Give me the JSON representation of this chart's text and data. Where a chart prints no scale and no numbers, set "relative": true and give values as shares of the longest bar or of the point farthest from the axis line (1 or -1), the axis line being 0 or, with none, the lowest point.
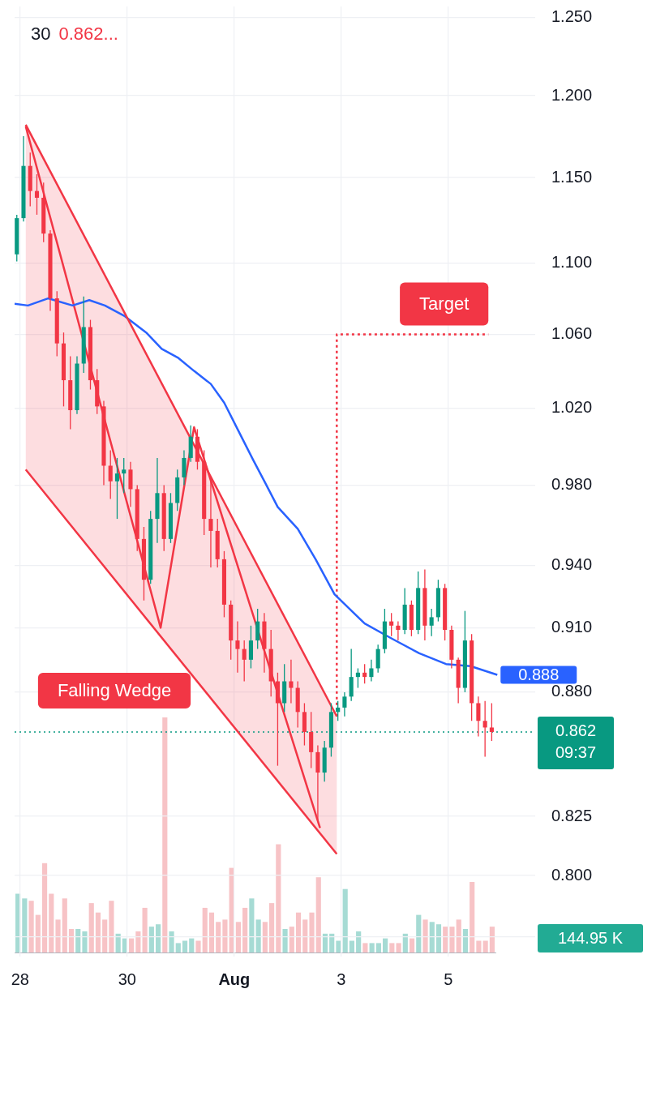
{
  "chart_data": [
    {
      "type": "candlestick",
      "title": "30",
      "x": [
        "--07-27T22:30",
        "--07-28T01:30",
        "--07-28T04:30",
        "--07-28T07:30",
        "--07-28T10:30",
        "--07-28T13:30",
        "--07-28T16:30",
        "--07-28T19:30",
        "--07-28T22:30",
        "--07-29T01:30",
        "--07-29T04:30",
        "--07-29T07:30",
        "--07-29T10:30",
        "--07-29T13:30",
        "--07-29T16:30",
        "--07-29T19:30",
        "--07-29T22:30",
        "--07-30T01:30",
        "--07-30T04:30",
        "--07-30T07:30",
        "--07-30T10:30",
        "--07-30T13:30",
        "--07-30T16:30",
        "--07-30T19:30",
        "--07-30T22:30",
        "--07-31T01:30",
        "--07-31T04:30",
        "--07-31T07:30",
        "--07-31T10:30",
        "--07-31T13:30",
        "--07-31T16:30",
        "--07-31T19:30",
        "--07-31T22:30",
        "--08-01T01:30",
        "--08-01T04:30",
        "--08-01T07:30",
        "--08-01T10:30",
        "--08-01T13:30",
        "--08-01T16:30",
        "--08-01T19:30",
        "--08-01T22:30",
        "--08-02T01:30",
        "--08-02T04:30",
        "--08-02T07:30",
        "--08-02T10:30",
        "--08-02T13:30",
        "--08-02T16:30",
        "--08-02T19:30",
        "--08-02T22:30",
        "--08-03T01:30",
        "--08-03T04:30",
        "--08-03T07:30",
        "--08-03T10:30",
        "--08-03T13:30",
        "--08-03T16:30",
        "--08-03T19:30",
        "--08-03T22:30",
        "--08-04T01:30",
        "--08-04T04:30",
        "--08-04T07:30",
        "--08-04T10:30",
        "--08-04T13:30",
        "--08-04T16:30",
        "--08-04T19:30",
        "--08-04T22:30",
        "--08-05T01:30",
        "--08-05T04:30",
        "--08-05T07:30",
        "--08-05T10:30",
        "--08-05T13:30",
        "--08-05T16:30",
        "--08-05T19:30"
      ],
      "ohlc": [
        [
          1.105,
          1.128,
          1.101,
          1.126
        ],
        [
          1.126,
          1.175,
          1.124,
          1.157
        ],
        [
          1.157,
          1.165,
          1.133,
          1.142
        ],
        [
          1.142,
          1.152,
          1.128,
          1.138
        ],
        [
          1.138,
          1.147,
          1.112,
          1.117
        ],
        [
          1.117,
          1.119,
          1.073,
          1.08
        ],
        [
          1.08,
          1.084,
          1.048,
          1.055
        ],
        [
          1.055,
          1.061,
          1.021,
          1.035
        ],
        [
          1.035,
          1.048,
          1.009,
          1.019
        ],
        [
          1.019,
          1.048,
          1.017,
          1.044
        ],
        [
          1.044,
          1.081,
          1.039,
          1.064
        ],
        [
          1.064,
          1.068,
          1.03,
          1.035
        ],
        [
          1.035,
          1.041,
          1.017,
          1.021
        ],
        [
          1.021,
          1.024,
          0.98,
          0.99
        ],
        [
          0.99,
          0.998,
          0.973,
          0.982
        ],
        [
          0.982,
          0.994,
          0.963,
          0.986
        ],
        [
          0.986,
          0.994,
          0.976,
          0.988
        ],
        [
          0.988,
          0.992,
          0.969,
          0.978
        ],
        [
          0.978,
          0.98,
          0.947,
          0.953
        ],
        [
          0.953,
          0.959,
          0.923,
          0.933
        ],
        [
          0.933,
          0.967,
          0.931,
          0.963
        ],
        [
          0.963,
          0.994,
          0.951,
          0.976
        ],
        [
          0.976,
          0.98,
          0.947,
          0.953
        ],
        [
          0.953,
          0.976,
          0.951,
          0.971
        ],
        [
          0.971,
          0.988,
          0.967,
          0.984
        ],
        [
          0.984,
          0.998,
          0.98,
          0.994
        ],
        [
          0.994,
          1.011,
          0.992,
          1.005
        ],
        [
          1.005,
          1.009,
          0.988,
          0.992
        ],
        [
          0.992,
          0.998,
          0.955,
          0.963
        ],
        [
          0.963,
          0.984,
          0.939,
          0.957
        ],
        [
          0.957,
          0.963,
          0.939,
          0.943
        ],
        [
          0.943,
          0.947,
          0.915,
          0.921
        ],
        [
          0.921,
          0.923,
          0.895,
          0.904
        ],
        [
          0.904,
          0.913,
          0.889,
          0.9
        ],
        [
          0.9,
          0.904,
          0.885,
          0.895
        ],
        [
          0.895,
          0.911,
          0.891,
          0.904
        ],
        [
          0.904,
          0.919,
          0.9,
          0.913
        ],
        [
          0.913,
          0.917,
          0.889,
          0.9
        ],
        [
          0.9,
          0.909,
          0.878,
          0.885
        ],
        [
          0.885,
          0.889,
          0.847,
          0.875
        ],
        [
          0.875,
          0.893,
          0.871,
          0.885
        ],
        [
          0.885,
          0.895,
          0.875,
          0.882
        ],
        [
          0.882,
          0.885,
          0.864,
          0.871
        ],
        [
          0.871,
          0.875,
          0.856,
          0.862
        ],
        [
          0.862,
          0.871,
          0.846,
          0.853
        ],
        [
          0.853,
          0.856,
          0.823,
          0.844
        ],
        [
          0.844,
          0.858,
          0.84,
          0.855
        ],
        [
          0.855,
          0.875,
          0.851,
          0.871
        ],
        [
          0.871,
          0.876,
          0.867,
          0.873
        ],
        [
          0.873,
          0.88,
          0.869,
          0.878
        ],
        [
          0.878,
          0.9,
          0.876,
          0.887
        ],
        [
          0.887,
          0.891,
          0.882,
          0.889
        ],
        [
          0.889,
          0.893,
          0.884,
          0.887
        ],
        [
          0.887,
          0.895,
          0.885,
          0.891
        ],
        [
          0.891,
          0.902,
          0.889,
          0.9
        ],
        [
          0.9,
          0.919,
          0.898,
          0.913
        ],
        [
          0.913,
          0.917,
          0.906,
          0.911
        ],
        [
          0.911,
          0.913,
          0.904,
          0.909
        ],
        [
          0.909,
          0.929,
          0.907,
          0.921
        ],
        [
          0.921,
          0.923,
          0.906,
          0.909
        ],
        [
          0.909,
          0.937,
          0.907,
          0.929
        ],
        [
          0.929,
          0.938,
          0.904,
          0.911
        ],
        [
          0.911,
          0.919,
          0.906,
          0.915
        ],
        [
          0.915,
          0.933,
          0.913,
          0.929
        ],
        [
          0.929,
          0.931,
          0.904,
          0.909
        ],
        [
          0.909,
          0.911,
          0.891,
          0.895
        ],
        [
          0.895,
          0.896,
          0.875,
          0.882
        ],
        [
          0.882,
          0.918,
          0.88,
          0.904
        ],
        [
          0.904,
          0.907,
          0.867,
          0.875
        ],
        [
          0.875,
          0.878,
          0.86,
          0.867
        ],
        [
          0.867,
          0.876,
          0.851,
          0.864
        ],
        [
          0.864,
          0.875,
          0.858,
          0.862
        ]
      ],
      "colors": [
        "#089981",
        "#089981",
        "#f23645",
        "#f23645",
        "#f23645",
        "#f23645",
        "#f23645",
        "#f23645",
        "#f23645",
        "#089981",
        "#089981",
        "#f23645",
        "#f23645",
        "#f23645",
        "#f23645",
        "#089981",
        "#089981",
        "#f23645",
        "#f23645",
        "#f23645",
        "#089981",
        "#089981",
        "#f23645",
        "#089981",
        "#089981",
        "#089981",
        "#089981",
        "#f23645",
        "#f23645",
        "#f23645",
        "#f23645",
        "#f23645",
        "#f23645",
        "#f23645",
        "#f23645",
        "#089981",
        "#089981",
        "#f23645",
        "#f23645",
        "#f23645",
        "#089981",
        "#f23645",
        "#f23645",
        "#f23645",
        "#f23645",
        "#f23645",
        "#089981",
        "#089981",
        "#089981",
        "#089981",
        "#089981",
        "#089981",
        "#f23645",
        "#089981",
        "#089981",
        "#089981",
        "#f23645",
        "#f23645",
        "#089981",
        "#f23645",
        "#089981",
        "#f23645",
        "#089981",
        "#089981",
        "#f23645",
        "#f23645",
        "#f23645",
        "#089981",
        "#f23645",
        "#f23645",
        "#f23645",
        "#f23645"
      ],
      "series": [
        {
          "type": "line",
          "color": "#f23645",
          "x": [
            "--07-28T02:30",
            "--08-02T22:00"
          ],
          "values": [
            1.182,
            0.869
          ],
          "lower": [
            0.988,
            0.809
          ],
          "upper": [
            1.182,
            0.869
          ]
        },
        {
          "type": "line",
          "color": "#f23645",
          "x": [
            "--07-28T02:30",
            "--08-02T22:00"
          ],
          "values": [
            0.988,
            0.809
          ]
        },
        {
          "type": "line",
          "color": "#2962ff",
          "x": [
            "--07-27T21:30",
            "--07-28T03:30",
            "--07-28T12:30",
            "--07-28T23:30",
            "--07-29T07:00",
            "--07-29T14:00",
            "--07-29T23:00",
            "--07-30T08:30",
            "--07-30T15:30",
            "--07-30T23:00",
            "--07-31T06:00",
            "--07-31T13:30",
            "--07-31T19:30",
            "--08-01T01:30",
            "--08-01T08:30",
            "--08-01T14:00",
            "--08-01T19:30",
            "--08-02T04:30",
            "--08-02T12:30",
            "--08-02T21:00",
            "--08-03T10:30",
            "--08-03T22:30",
            "--08-04T11:00",
            "--08-04T23:00",
            "--08-05T10:00",
            "--08-05T22:00"
          ],
          "values": [
            1.077,
            1.076,
            1.08,
            1.076,
            1.079,
            1.076,
            1.07,
            1.061,
            1.052,
            1.047,
            1.04,
            1.033,
            1.023,
            1.009,
            0.993,
            0.981,
            0.969,
            0.958,
            0.943,
            0.926,
            0.912,
            0.905,
            0.898,
            0.893,
            0.892,
            0.888
          ],
          "value_labels": [
            null,
            null,
            null,
            null,
            null,
            null,
            null,
            null,
            null,
            null,
            null,
            null,
            null,
            null,
            null,
            null,
            null,
            null,
            null,
            null,
            null,
            null,
            null,
            null,
            null,
            "0.888"
          ]
        },
        {
          "type": "line",
          "color": "#f23645",
          "x": [
            "--07-28T02:30",
            "--07-30T15:00",
            "--07-31T06:00",
            "--08-02T14:30"
          ],
          "values": [
            1.181,
            0.91,
            1.01,
            0.82
          ]
        },
        {
          "type": "line",
          "color": "#f23645",
          "line_style": "dotted",
          "x": [
            "--08-02T22:00",
            "--08-02T22:00",
            "--08-05T18:00"
          ],
          "values": [
            0.869,
            1.06,
            1.06
          ]
        }
      ],
      "xlim": [
        "--07-27T21:30",
        "--08-06T15:00"
      ],
      "xticks": [
        {
          "value": "--07-28",
          "label": "28"
        },
        {
          "value": "--07-30",
          "label": "30"
        },
        {
          "value": "--08-01",
          "label": "Aug"
        },
        {
          "value": "--08-03",
          "label": "3"
        },
        {
          "value": "--08-05",
          "label": "5"
        }
      ],
      "ylim": [
        0.767,
        1.257
      ],
      "yticks": [
        {
          "value": 0.775,
          "label": null
        },
        {
          "value": 0.8,
          "label": "0.800"
        },
        0.825,
        {
          "value": 0.88,
          "label": "0.880"
        },
        {
          "value": 0.91,
          "label": "0.910"
        },
        {
          "value": 0.94,
          "label": "0.940"
        },
        {
          "value": 0.98,
          "label": "0.980"
        },
        {
          "value": 1.02,
          "label": "1.020"
        },
        {
          "value": 1.06,
          "label": "1.060"
        },
        {
          "value": 1.1,
          "label": "1.100"
        },
        {
          "value": 1.15,
          "label": "1.150"
        },
        {
          "value": 1.2,
          "label": "1.200"
        },
        {
          "value": 1.25,
          "label": "1.250"
        }
      ],
      "log": true,
      "grid": true,
      "ref_lines": [
        {
          "axis": "y",
          "value": 0.862,
          "label": "0.862",
          "color": "#089981",
          "line_style": "dotted"
        }
      ],
      "annotations": [
        {
          "text": "Target",
          "x": "--08-05T18:00",
          "y": 1.06
        },
        "Falling Wedge",
        "0.862...",
        "09:37"
      ]
    },
    {
      "type": "bar",
      "relative": true,
      "categories": [
        null,
        null,
        null,
        null,
        null,
        null,
        null,
        null,
        null,
        null,
        null,
        null,
        null,
        null,
        null,
        null,
        null,
        null,
        null,
        null,
        null,
        null,
        null,
        null,
        null,
        null,
        null,
        null,
        null,
        null,
        null,
        null,
        null,
        null,
        null,
        null,
        null,
        null,
        null,
        null,
        null,
        null,
        null,
        null,
        null,
        null,
        null,
        null,
        null,
        null,
        null,
        null,
        null,
        null,
        null,
        null,
        null,
        null,
        null,
        null,
        null,
        null,
        null,
        null,
        null,
        null,
        null,
        null,
        null,
        null,
        null,
        null
      ],
      "values": [
        0.25,
        0.23,
        0.22,
        0.16,
        0.38,
        0.25,
        0.14,
        0.23,
        0.1,
        0.1,
        0.09,
        0.21,
        0.17,
        0.14,
        0.22,
        0.08,
        0.06,
        0.06,
        0.09,
        0.19,
        0.11,
        0.12,
        1,
        0.09,
        0.04,
        0.05,
        0.06,
        0.05,
        0.19,
        0.17,
        0.13,
        0.14,
        0.36,
        0.13,
        0.19,
        0.23,
        0.14,
        0.13,
        0.21,
        0.46,
        0.1,
        0.11,
        0.17,
        0.14,
        0.17,
        0.32,
        0.08,
        0.08,
        0.05,
        0.27,
        0.05,
        0.09,
        0.04,
        0.04,
        0.04,
        0.06,
        0.04,
        0.04,
        0.08,
        0.06,
        0.16,
        0.14,
        0.13,
        0.12,
        0.11,
        0.11,
        0.14,
        0.1,
        0.3,
        0.05,
        0.05,
        0.11
      ],
      "colors": [
        "#a6dbd4",
        "#a6dbd4",
        "#f7c3c6",
        "#f7c3c6",
        "#f7c3c6",
        "#f7c3c6",
        "#f7c3c6",
        "#f7c3c6",
        "#f7c3c6",
        "#a6dbd4",
        "#a6dbd4",
        "#f7c3c6",
        "#f7c3c6",
        "#f7c3c6",
        "#f7c3c6",
        "#a6dbd4",
        "#a6dbd4",
        "#f7c3c6",
        "#f7c3c6",
        "#f7c3c6",
        "#a6dbd4",
        "#a6dbd4",
        "#f7c3c6",
        "#a6dbd4",
        "#a6dbd4",
        "#a6dbd4",
        "#a6dbd4",
        "#f7c3c6",
        "#f7c3c6",
        "#f7c3c6",
        "#f7c3c6",
        "#f7c3c6",
        "#f7c3c6",
        "#f7c3c6",
        "#f7c3c6",
        "#a6dbd4",
        "#a6dbd4",
        "#f7c3c6",
        "#f7c3c6",
        "#f7c3c6",
        "#a6dbd4",
        "#f7c3c6",
        "#f7c3c6",
        "#f7c3c6",
        "#f7c3c6",
        "#f7c3c6",
        "#a6dbd4",
        "#a6dbd4",
        "#a6dbd4",
        "#a6dbd4",
        "#a6dbd4",
        "#a6dbd4",
        "#f7c3c6",
        "#a6dbd4",
        "#a6dbd4",
        "#a6dbd4",
        "#f7c3c6",
        "#f7c3c6",
        "#a6dbd4",
        "#f7c3c6",
        "#a6dbd4",
        "#f7c3c6",
        "#a6dbd4",
        "#a6dbd4",
        "#f7c3c6",
        "#f7c3c6",
        "#f7c3c6",
        "#a6dbd4",
        "#f7c3c6",
        "#f7c3c6",
        "#f7c3c6",
        "#f7c3c6"
      ],
      "annotations": [
        "144.95 K"
      ]
    }
  ]
}
